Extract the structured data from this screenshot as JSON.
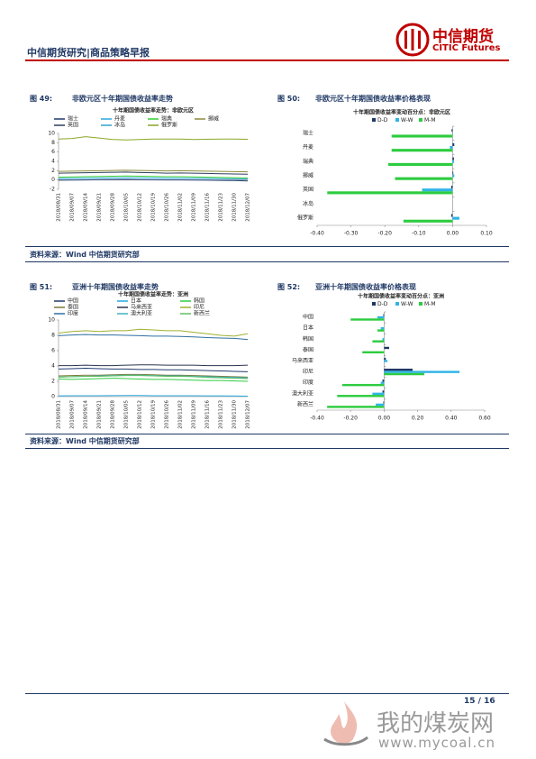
{
  "header": {
    "title": "中信期货研究|商品策略早报",
    "logo_cn": "中信期货",
    "logo_en": "CITIC Futures"
  },
  "figures": [
    {
      "label": "图 49:",
      "caption": "非欧元区十年期国债收益率走势"
    },
    {
      "label": "图 50:",
      "caption": "非欧元区十年期国债收益率价格表现"
    },
    {
      "label": "图 51:",
      "caption": "亚洲十年期国债收益率走势"
    },
    {
      "label": "图 52:",
      "caption": "亚洲十年期国债收益率价格表现"
    }
  ],
  "sources": [
    "资料来源：Wind  中信期货研究部",
    "资料来源：Wind  中信期货研究部"
  ],
  "chart_data": [
    {
      "type": "line",
      "title": "十年期国债收益率走势：非欧元区",
      "categories": [
        "2018/08/31",
        "2018/09/07",
        "2018/09/14",
        "2018/09/21",
        "2018/09/28",
        "2018/10/05",
        "2018/10/12",
        "2018/10/19",
        "2018/10/26",
        "2018/11/02",
        "2018/11/09",
        "2018/11/16",
        "2018/11/23",
        "2018/11/30",
        "2018/12/07"
      ],
      "ylim": [
        -2,
        10
      ],
      "yticks": [
        -2,
        0,
        2,
        4,
        6,
        8,
        10
      ],
      "grid": false,
      "series": [
        {
          "name": "瑞士",
          "color": "#1f3a6e",
          "values": [
            -0.05,
            -0.02,
            0.0,
            0.05,
            0.08,
            0.1,
            0.05,
            0.03,
            0.0,
            0.0,
            -0.02,
            -0.05,
            -0.1,
            -0.12,
            -0.2
          ]
        },
        {
          "name": "丹麦",
          "color": "#2aa6de",
          "values": [
            0.3,
            0.35,
            0.38,
            0.42,
            0.45,
            0.48,
            0.45,
            0.42,
            0.38,
            0.38,
            0.35,
            0.32,
            0.28,
            0.25,
            0.2
          ]
        },
        {
          "name": "瑞典",
          "color": "#33cc33",
          "values": [
            0.6,
            0.65,
            0.7,
            0.75,
            0.8,
            0.85,
            0.8,
            0.75,
            0.7,
            0.7,
            0.65,
            0.6,
            0.55,
            0.5,
            0.45
          ]
        },
        {
          "name": "挪威",
          "color": "#8b8b3a",
          "values": [
            1.85,
            1.9,
            1.95,
            2.0,
            2.05,
            2.1,
            2.05,
            2.0,
            1.95,
            2.0,
            1.95,
            1.9,
            1.85,
            1.8,
            1.75
          ]
        },
        {
          "name": "英国",
          "color": "#2f3f5f",
          "values": [
            1.45,
            1.5,
            1.55,
            1.6,
            1.65,
            1.7,
            1.6,
            1.55,
            1.45,
            1.5,
            1.45,
            1.4,
            1.35,
            1.3,
            1.25
          ]
        },
        {
          "name": "冰岛",
          "color": "#34a0c8",
          "values": [
            null,
            null,
            null,
            null,
            null,
            null,
            null,
            null,
            null,
            null,
            null,
            null,
            null,
            null,
            null
          ]
        },
        {
          "name": "俄罗斯",
          "color": "#8aa628",
          "values": [
            8.8,
            8.9,
            9.3,
            9.0,
            8.7,
            8.6,
            8.7,
            8.8,
            8.8,
            8.8,
            8.7,
            8.75,
            8.8,
            8.8,
            8.75
          ]
        }
      ]
    },
    {
      "type": "hbar",
      "title": "十年期国债收益率变动百分点：非欧元区",
      "categories": [
        "瑞士",
        "丹麦",
        "瑞典",
        "挪威",
        "英国",
        "冰岛",
        "俄罗斯"
      ],
      "xlim": [
        -0.4,
        0.1
      ],
      "xticks": [
        {
          "value": -0.4,
          "label": "-0.40"
        },
        {
          "value": -0.3,
          "label": "-0.30"
        },
        {
          "value": -0.2,
          "label": "-0.20"
        },
        {
          "value": -0.1,
          "label": "-0.10"
        },
        {
          "value": 0,
          "label": "0.00"
        },
        {
          "value": 0.1,
          "label": "0.10"
        }
      ],
      "series": [
        {
          "name": "D-D",
          "color": "#1f3864",
          "values": [
            -0.003,
            0.005,
            0.004,
            0.002,
            -0.004,
            null,
            -0.004
          ]
        },
        {
          "name": "W-W",
          "color": "#2eb4e6",
          "values": [
            0.001,
            -0.008,
            0.004,
            0.005,
            -0.09,
            null,
            0.02
          ]
        },
        {
          "name": "M-M",
          "color": "#2ecc40",
          "values": [
            -0.18,
            -0.18,
            -0.19,
            -0.17,
            -0.37,
            null,
            -0.145
          ]
        }
      ]
    },
    {
      "type": "line",
      "title": "十年期国债收益率走势：亚洲",
      "categories": [
        "2018/08/31",
        "2018/09/07",
        "2018/09/14",
        "2018/09/21",
        "2018/09/28",
        "2018/10/05",
        "2018/10/12",
        "2018/10/19",
        "2018/10/26",
        "2018/11/02",
        "2018/11/09",
        "2018/11/16",
        "2018/11/23",
        "2018/11/30",
        "2018/12/07"
      ],
      "ylim": [
        0,
        10
      ],
      "yticks": [
        0,
        2,
        4,
        6,
        8,
        10
      ],
      "grid": false,
      "series": [
        {
          "name": "中国",
          "color": "#1f3a6e",
          "values": [
            3.6,
            3.65,
            3.7,
            3.65,
            3.6,
            3.6,
            3.55,
            3.55,
            3.5,
            3.5,
            3.45,
            3.4,
            3.35,
            3.3,
            3.25
          ]
        },
        {
          "name": "日本",
          "color": "#29a8e0",
          "values": [
            0.1,
            0.11,
            0.12,
            0.12,
            0.13,
            0.15,
            0.14,
            0.12,
            0.12,
            0.12,
            0.11,
            0.1,
            0.1,
            0.09,
            0.06
          ]
        },
        {
          "name": "韩国",
          "color": "#2ecc40",
          "values": [
            2.3,
            2.25,
            2.3,
            2.35,
            2.4,
            2.35,
            2.3,
            2.25,
            2.25,
            2.2,
            2.15,
            2.1,
            2.1,
            2.05,
            2.0
          ]
        },
        {
          "name": "泰国",
          "color": "#7a7a3a",
          "values": [
            2.7,
            2.75,
            2.8,
            2.8,
            2.85,
            2.9,
            2.9,
            2.85,
            2.8,
            2.8,
            2.75,
            2.7,
            2.65,
            2.6,
            2.55
          ]
        },
        {
          "name": "马来西亚",
          "color": "#2b3550",
          "values": [
            4.05,
            4.05,
            4.1,
            4.05,
            4.05,
            4.1,
            4.15,
            4.15,
            4.1,
            4.1,
            4.1,
            4.05,
            4.05,
            4.05,
            4.1
          ]
        },
        {
          "name": "印尼",
          "color": "#a0b030",
          "values": [
            8.3,
            8.5,
            8.6,
            8.5,
            8.6,
            8.6,
            8.8,
            8.7,
            8.6,
            8.6,
            8.4,
            8.2,
            8.0,
            7.9,
            8.2
          ]
        },
        {
          "name": "印度",
          "color": "#2f6fa0",
          "values": [
            7.95,
            8.05,
            8.1,
            8.05,
            8.05,
            8.0,
            7.95,
            7.9,
            7.9,
            7.85,
            7.8,
            7.7,
            7.65,
            7.6,
            7.45
          ]
        },
        {
          "name": "澳大利亚",
          "color": "#40b0c0",
          "values": [
            2.55,
            2.6,
            2.65,
            2.7,
            2.75,
            2.8,
            2.8,
            2.75,
            2.7,
            2.7,
            2.65,
            2.6,
            2.55,
            2.5,
            2.45
          ]
        },
        {
          "name": "新西兰",
          "color": "#5ec060",
          "values": [
            2.55,
            2.6,
            2.65,
            2.65,
            2.7,
            2.75,
            2.75,
            2.7,
            2.65,
            2.65,
            2.6,
            2.5,
            2.45,
            2.4,
            2.35
          ]
        }
      ]
    },
    {
      "type": "hbar",
      "title": "十年期国债收益率变动百分点：亚洲",
      "categories": [
        "中国",
        "日本",
        "韩国",
        "泰国",
        "马来西亚",
        "印尼",
        "印度",
        "澳大利亚",
        "新西兰"
      ],
      "xlim": [
        -0.4,
        0.6
      ],
      "xticks": [
        {
          "value": -0.4,
          "label": "-0.40"
        },
        {
          "value": -0.2,
          "label": "-0.20"
        },
        {
          "value": 0,
          "label": "0.00"
        },
        {
          "value": 0.2,
          "label": "0.20"
        },
        {
          "value": 0.4,
          "label": "0.40"
        },
        {
          "value": 0.6,
          "label": "0.60"
        }
      ],
      "series": [
        {
          "name": "D-D",
          "color": "#1f3864",
          "values": [
            -0.005,
            0.0,
            0.0,
            0.03,
            0.01,
            0.17,
            -0.01,
            -0.01,
            -0.005
          ]
        },
        {
          "name": "W-W",
          "color": "#2eb4e6",
          "values": [
            -0.04,
            -0.02,
            -0.01,
            0.0,
            0.02,
            0.45,
            -0.02,
            -0.07,
            -0.05
          ]
        },
        {
          "name": "M-M",
          "color": "#2ecc40",
          "values": [
            -0.2,
            -0.04,
            -0.07,
            -0.13,
            0.0,
            0.24,
            -0.25,
            -0.28,
            -0.34
          ]
        }
      ]
    }
  ],
  "footer": {
    "page": "15 / 16"
  },
  "watermark": {
    "text": "我的煤炭网",
    "url": "www.mycoal.cn"
  }
}
